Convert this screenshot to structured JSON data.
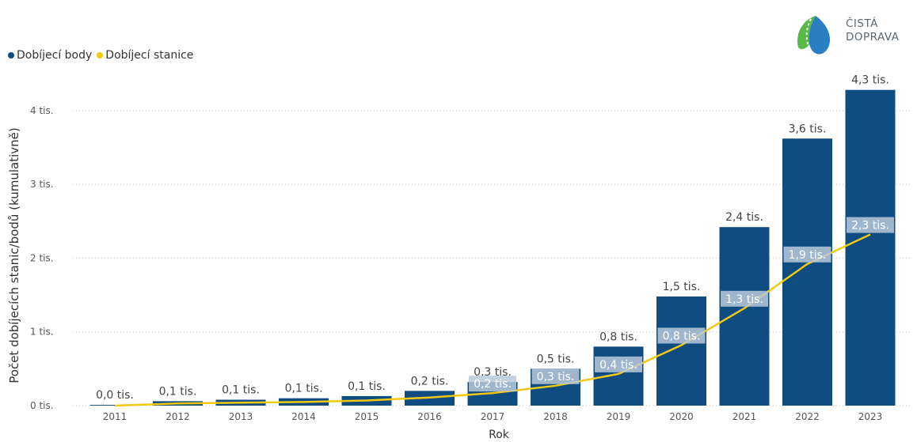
{
  "legend": {
    "series1": "Dobíjecí body",
    "series2": "Dobíjecí stanice"
  },
  "logo": {
    "line1": "ČISTÁ",
    "line2": "DOPRAVA"
  },
  "colors": {
    "bar": "#0f4c81",
    "line": "#f2c811",
    "label_bg": "#b9c9d9",
    "text": "#333333"
  },
  "chart_data": {
    "type": "bar",
    "ylabel": "Počet dobíjecích stanic/bodů (kumulativně)",
    "xlabel": "Rok",
    "ylim": [
      0,
      4.3
    ],
    "yticks": [
      0,
      1,
      2,
      3,
      4
    ],
    "ytick_labels": [
      "0 tis.",
      "1 tis.",
      "2 tis.",
      "3 tis.",
      "4 tis."
    ],
    "categories": [
      "2011",
      "2012",
      "2013",
      "2014",
      "2015",
      "2016",
      "2017",
      "2018",
      "2019",
      "2020",
      "2021",
      "2022",
      "2023"
    ],
    "series": [
      {
        "name": "Dobíjecí body",
        "type": "bar",
        "values": [
          0.01,
          0.06,
          0.08,
          0.1,
          0.13,
          0.2,
          0.32,
          0.5,
          0.8,
          1.48,
          2.42,
          3.62,
          4.28
        ],
        "labels": [
          "0,0 tis.",
          "0,1 tis.",
          "0,1 tis.",
          "0,1 tis.",
          "0,1 tis.",
          "0,2 tis.",
          "0,3 tis.",
          "0,5 tis.",
          "0,8 tis.",
          "1,5 tis.",
          "2,4 tis.",
          "3,6 tis.",
          "4,3 tis."
        ]
      },
      {
        "name": "Dobíjecí stanice",
        "type": "line",
        "values": [
          0.0,
          0.03,
          0.04,
          0.05,
          0.07,
          0.11,
          0.17,
          0.27,
          0.43,
          0.82,
          1.32,
          1.92,
          2.32
        ],
        "labels": [
          "",
          "",
          "",
          "",
          "",
          "",
          "0,2 tis.",
          "0,3 tis.",
          "0,4 tis.",
          "0,8 tis.",
          "1,3 tis.",
          "1,9 tis.",
          "2,3 tis."
        ]
      }
    ],
    "grid": true,
    "legend_position": "top-left"
  }
}
